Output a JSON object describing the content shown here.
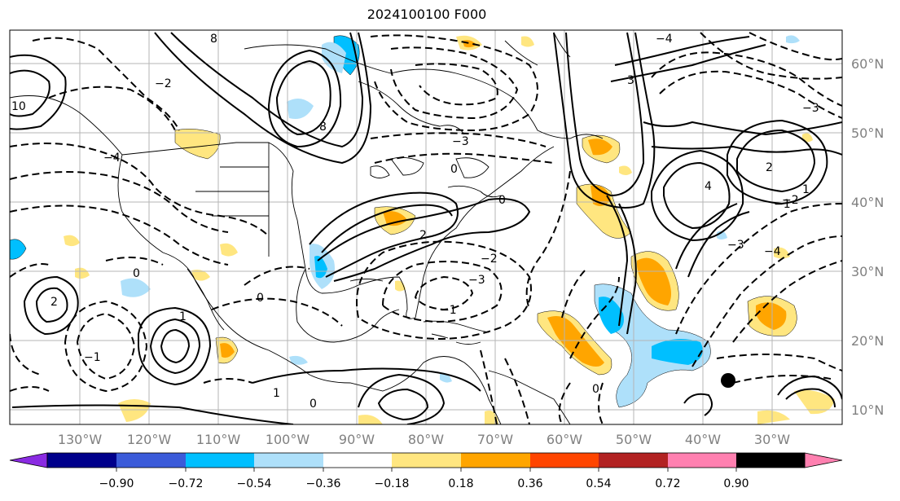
{
  "title": "2024100100 F000",
  "lon_labels": [
    "130°W",
    "120°W",
    "110°W",
    "100°W",
    "90°W",
    "80°W",
    "70°W",
    "60°W",
    "50°W",
    "40°W",
    "30°W"
  ],
  "lat_labels": [
    "60°N",
    "50°N",
    "40°N",
    "30°N",
    "20°N",
    "10°N"
  ],
  "colorbar": {
    "ticks": [
      "−0.90",
      "−0.72",
      "−0.54",
      "−0.36",
      "−0.18",
      "0.18",
      "0.36",
      "0.54",
      "0.72",
      "0.90"
    ],
    "colors": [
      "#8a2be2",
      "#00008b",
      "#3b5bd9",
      "#00bfff",
      "#aee0fa",
      "#ffffff",
      "#ffe680",
      "#ffa500",
      "#ff4500",
      "#b22222",
      "#ff80b0"
    ]
  },
  "contour_labels": [
    "0",
    "−1",
    "−2",
    "−3",
    "−4",
    "1",
    "2",
    "3",
    "4",
    "8",
    "10"
  ],
  "marker": "black-dot"
}
